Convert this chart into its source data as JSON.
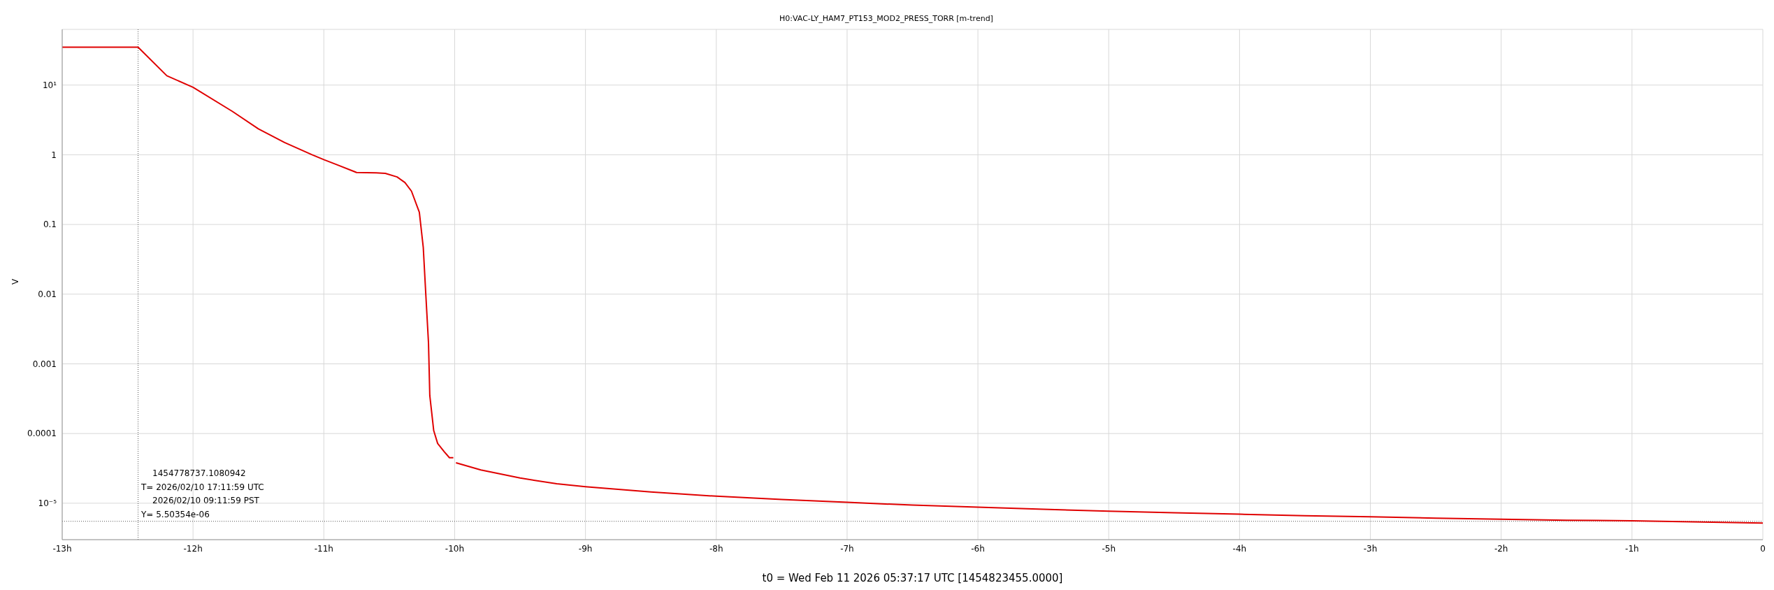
{
  "chart_data": {
    "type": "line",
    "title": "H0:VAC-LY_HAM7_PT153_MOD2_PRESS_TORR [m-trend]",
    "xlabel": "t0 = Wed Feb 11 2026 05:37:17 UTC [1454823455.0000]",
    "ylabel": "V",
    "x": [
      -13,
      -12.42,
      -12.2,
      -12,
      -11.7,
      -11.5,
      -11.3,
      -11.09,
      -11,
      -10.9,
      -10.75,
      -10.6,
      -10.53,
      -10.44,
      -10.38,
      -10.33,
      -10.27,
      -10.24,
      -10.22,
      -10.2,
      -10.19,
      -10.16,
      -10.13,
      -10.08,
      -10.04,
      -10.01,
      -10.005,
      -9.99,
      -9.8,
      -9.5,
      -9.22,
      -9,
      -8.5,
      -8,
      -7.5,
      -7,
      -6.5,
      -6,
      -5.5,
      -5,
      -4.5,
      -4,
      -3.5,
      -3,
      -2.5,
      -2,
      -1.5,
      -1,
      0
    ],
    "series": [
      {
        "color": "#e00000",
        "values": [
          35,
          35,
          13.6,
          9.3,
          4.2,
          2.35,
          1.5,
          1,
          0.85,
          0.72,
          0.557,
          0.55,
          0.54,
          0.48,
          0.4,
          0.3,
          0.15,
          0.047,
          0.0095,
          0.002,
          0.00035,
          0.00011,
          7.2e-05,
          5.5e-05,
          4.5e-05,
          4.5e-05,
          null,
          3.8e-05,
          3e-05,
          2.3e-05,
          1.9e-05,
          1.73e-05,
          1.45e-05,
          1.26e-05,
          1.13e-05,
          1.03e-05,
          9.4e-06,
          8.8e-06,
          8.2e-06,
          7.7e-06,
          7.3e-06,
          6.95e-06,
          6.6e-06,
          6.4e-06,
          6.1e-06,
          5.9e-06,
          5.7e-06,
          5.6e-06,
          5.2e-06
        ]
      }
    ],
    "xlim": [
      -13,
      0
    ],
    "xticks": [
      {
        "value": -13,
        "label": "-13h"
      },
      {
        "value": -12,
        "label": "-12h"
      },
      {
        "value": -11,
        "label": "-11h"
      },
      {
        "value": -10,
        "label": "-10h"
      },
      {
        "value": -9,
        "label": "-9h"
      },
      {
        "value": -8,
        "label": "-8h"
      },
      {
        "value": -7,
        "label": "-7h"
      },
      {
        "value": -6,
        "label": "-6h"
      },
      {
        "value": -5,
        "label": "-5h"
      },
      {
        "value": -4,
        "label": "-4h"
      },
      {
        "value": -3,
        "label": "-3h"
      },
      {
        "value": -2,
        "label": "-2h"
      },
      {
        "value": -1,
        "label": "-1h"
      },
      0
    ],
    "ylim": [
      3e-06,
      63
    ],
    "yticks": [
      {
        "value": 1e-05,
        "label": "10⁻⁵"
      },
      0.0001,
      0.001,
      0.01,
      0.1,
      1,
      {
        "value": 10,
        "label": "10¹"
      }
    ],
    "log": "y",
    "grid": true,
    "legend": false,
    "marker": "none",
    "line_style": "solid",
    "ref_lines": [
      {
        "axis": "x",
        "value": -12.42,
        "line_style": "dotted",
        "color": "#555555"
      },
      {
        "axis": "y",
        "value": 5.50354e-06,
        "line_style": "dotted",
        "color": "#555555"
      }
    ],
    "annotations": [
      "1454778737.1080942",
      "T= 2026/02/10 17:11:59 UTC",
      "2026/02/10 09:11:59 PST",
      "Y= 5.50354e-06"
    ]
  }
}
